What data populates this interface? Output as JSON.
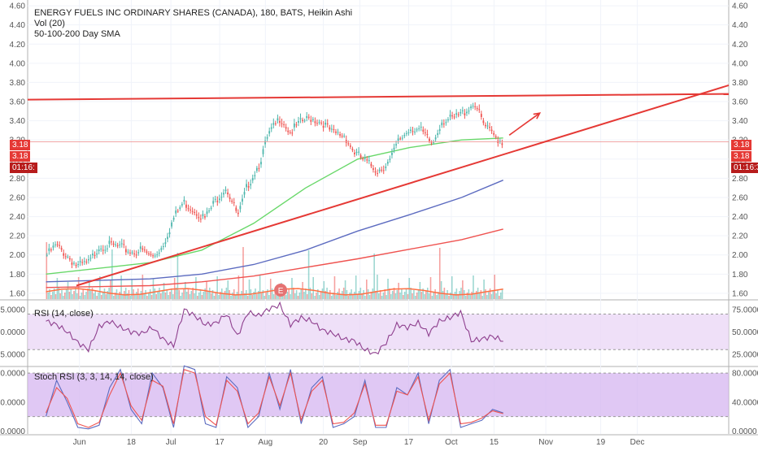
{
  "header": {
    "title": "ENERGY FUELS INC ORDINARY SHARES (CANADA), 180, BATS, Heikin Ashi",
    "vol_label": "Vol (20)",
    "sma_label": "50-100-200 Day SMA"
  },
  "price_labels": {
    "left_price_1": "3.18",
    "left_price_2": "3.18",
    "left_time": "01:16:",
    "right_price_1": "3.18",
    "right_price_2": "3.18",
    "right_time": "01:16:30",
    "earnings_marker": "E"
  },
  "rsi_panel": {
    "label": "RSI (14, close)"
  },
  "stoch_panel": {
    "label": "Stoch RSI (3, 3, 14, 14, close)"
  },
  "colors": {
    "up": "#4db6ac",
    "down": "#ef5350",
    "sma50": "#69d86a",
    "sma100": "#5c6bc0",
    "sma200": "#ef5350",
    "trend": "#e53935",
    "rsi": "#8e3f8e",
    "band": "#e9d5f5",
    "stoch_band": "#d6b5f0",
    "stoch_k": "#5c6bc0",
    "stoch_d": "#ef5350"
  },
  "chart_data": [
    {
      "type": "candlestick",
      "title": "ENERGY FUELS INC ORDINARY SHARES (CANADA), 180, BATS, Heikin Ashi",
      "y_ticks": [
        "1.60",
        "1.80",
        "2.00",
        "2.20",
        "2.40",
        "2.60",
        "2.80",
        "3.00",
        "3.20",
        "3.40",
        "3.60",
        "3.80",
        "4.00",
        "4.20",
        "4.40",
        "4.60"
      ],
      "ylim": [
        1.54,
        4.66
      ],
      "x_ticks": [
        "Jun",
        "18",
        "Jul",
        "17",
        "Aug",
        "20",
        "Sep",
        "17",
        "Oct",
        "15",
        "Nov",
        "19",
        "Dec"
      ],
      "price_path": [
        [
          "May 21",
          2.0
        ],
        [
          "May 24",
          2.1
        ],
        [
          "May 28",
          1.98
        ],
        [
          "May 31",
          1.88
        ],
        [
          "Jun 4",
          1.92
        ],
        [
          "Jun 7",
          2.09
        ],
        [
          "Jun 11",
          2.1
        ],
        [
          "Jun 14",
          2.08
        ],
        [
          "Jun 18",
          2.03
        ],
        [
          "Jun 21",
          2.05
        ],
        [
          "Jun 25",
          1.98
        ],
        [
          "Jun 28",
          2.09
        ],
        [
          "Jul 2",
          2.4
        ],
        [
          "Jul 5",
          2.55
        ],
        [
          "Jul 9",
          2.46
        ],
        [
          "Jul 12",
          2.38
        ],
        [
          "Jul 16",
          2.59
        ],
        [
          "Jul 19",
          2.71
        ],
        [
          "Jul 23",
          2.4
        ],
        [
          "Jul 26",
          2.72
        ],
        [
          "Jul 30",
          2.96
        ],
        [
          "Aug 2",
          3.25
        ],
        [
          "Aug 6",
          3.44
        ],
        [
          "Aug 9",
          3.28
        ],
        [
          "Aug 13",
          3.39
        ],
        [
          "Aug 16",
          3.43
        ],
        [
          "Aug 20",
          3.38
        ],
        [
          "Aug 23",
          3.27
        ],
        [
          "Aug 27",
          3.25
        ],
        [
          "Aug 30",
          3.08
        ],
        [
          "Sep 3",
          2.97
        ],
        [
          "Sep 7",
          2.88
        ],
        [
          "Sep 11",
          2.98
        ],
        [
          "Sep 14",
          3.2
        ],
        [
          "Sep 18",
          3.33
        ],
        [
          "Sep 21",
          3.3
        ],
        [
          "Sep 25",
          3.15
        ],
        [
          "Sep 28",
          3.4
        ],
        [
          "Oct 2",
          3.42
        ],
        [
          "Oct 5",
          3.48
        ],
        [
          "Oct 9",
          3.59
        ],
        [
          "Oct 12",
          3.35
        ],
        [
          "Oct 15",
          3.25
        ],
        [
          "Oct 18",
          3.18
        ]
      ],
      "series": [
        {
          "name": "SMA 50",
          "values": [
            [
              0,
              1.8
            ],
            [
              100,
              1.92
            ],
            [
              150,
              2.05
            ],
            [
              200,
              2.33
            ],
            [
              250,
              2.7
            ],
            [
              300,
              3.0
            ],
            [
              350,
              3.12
            ],
            [
              400,
              3.2
            ],
            [
              440,
              3.22
            ]
          ]
        },
        {
          "name": "SMA 100",
          "values": [
            [
              0,
              1.72
            ],
            [
              100,
              1.75
            ],
            [
              150,
              1.8
            ],
            [
              200,
              1.9
            ],
            [
              250,
              2.05
            ],
            [
              300,
              2.25
            ],
            [
              350,
              2.42
            ],
            [
              400,
              2.6
            ],
            [
              440,
              2.78
            ]
          ]
        },
        {
          "name": "SMA 200",
          "values": [
            [
              0,
              1.66
            ],
            [
              100,
              1.68
            ],
            [
              150,
              1.72
            ],
            [
              200,
              1.78
            ],
            [
              250,
              1.87
            ],
            [
              300,
              1.96
            ],
            [
              350,
              2.06
            ],
            [
              400,
              2.16
            ],
            [
              440,
              2.27
            ]
          ]
        }
      ],
      "trendlines": [
        {
          "name": "resistance",
          "from": [
            "May 15",
            3.62
          ],
          "to": [
            "Dec 31",
            3.68
          ]
        },
        {
          "name": "support",
          "from": [
            "May 31",
            1.68
          ],
          "to": [
            "Dec 31",
            3.77
          ]
        }
      ],
      "arrow": {
        "from": [
          "Oct 20",
          3.25
        ],
        "to": [
          "Oct 30",
          3.48
        ]
      }
    },
    {
      "type": "line",
      "title": "RSI (14, close)",
      "y_ticks": [
        "25.0000",
        "50.0000",
        "75.0000"
      ],
      "ylim": [
        12,
        85
      ],
      "band": [
        30,
        70
      ],
      "values": [
        62,
        58,
        50,
        38,
        30,
        56,
        62,
        55,
        50,
        48,
        55,
        42,
        34,
        75,
        68,
        58,
        60,
        70,
        45,
        72,
        68,
        76,
        80,
        58,
        66,
        62,
        52,
        48,
        42,
        40,
        30,
        25,
        38,
        58,
        55,
        60,
        48,
        62,
        66,
        72,
        40,
        42,
        45,
        40
      ]
    },
    {
      "type": "line",
      "title": "Stoch RSI (3, 3, 14, 14, close)",
      "y_ticks": [
        "0.0000",
        "40.0000",
        "80.0000"
      ],
      "ylim": [
        -4,
        88
      ],
      "band": [
        20,
        80
      ],
      "series": [
        {
          "name": "%K",
          "values": [
            20,
            70,
            40,
            5,
            3,
            8,
            60,
            85,
            30,
            10,
            80,
            60,
            5,
            90,
            85,
            10,
            5,
            75,
            60,
            5,
            20,
            80,
            30,
            85,
            10,
            60,
            75,
            5,
            10,
            20,
            70,
            5,
            5,
            60,
            50,
            80,
            10,
            70,
            85,
            5,
            10,
            15,
            30,
            25
          ]
        },
        {
          "name": "%D",
          "values": [
            25,
            60,
            45,
            10,
            5,
            12,
            50,
            80,
            35,
            15,
            70,
            62,
            10,
            85,
            80,
            20,
            8,
            70,
            55,
            10,
            25,
            75,
            35,
            80,
            15,
            55,
            70,
            10,
            12,
            25,
            65,
            8,
            8,
            55,
            50,
            75,
            15,
            65,
            80,
            10,
            12,
            18,
            28,
            24
          ]
        }
      ]
    }
  ]
}
